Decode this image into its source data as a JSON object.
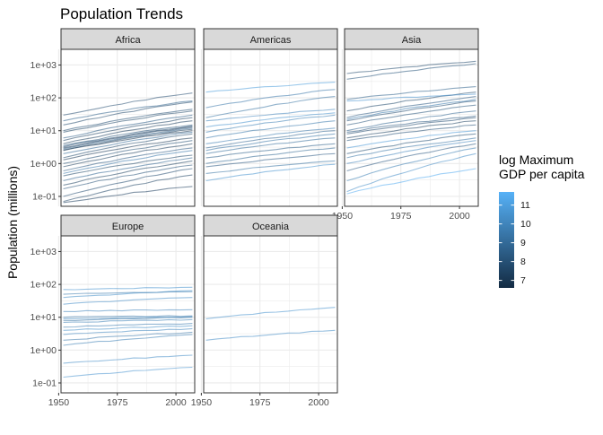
{
  "chart_data": {
    "type": "line",
    "title": "Population Trends",
    "xlabel": "",
    "ylabel": "Population (millions)",
    "x_ticks": [
      1950,
      1975,
      2000
    ],
    "xlim": [
      1951,
      2008
    ],
    "y_scale": "log10",
    "y_ticks": [
      0.1,
      1,
      10,
      100,
      1000
    ],
    "y_tick_labels": [
      "1e-01",
      "1e+00",
      "1e+01",
      "1e+02",
      "1e+03"
    ],
    "ylim": [
      0.05,
      3000
    ],
    "grid": true,
    "legend": {
      "title_lines": [
        "log Maximum",
        "GDP per capita"
      ],
      "position": "right",
      "min": 6.6,
      "max": 11.7,
      "ticks": [
        7,
        8,
        9,
        10,
        11
      ],
      "color_low": "#132B43",
      "color_high": "#56B1F7"
    },
    "panels": [
      {
        "name": "Africa",
        "series": [
          {
            "start": 0.065,
            "end": 0.2,
            "c": 7.3
          },
          {
            "start": 0.07,
            "end": 0.45,
            "c": 7.6
          },
          {
            "start": 0.1,
            "end": 0.7,
            "c": 7.9
          },
          {
            "start": 0.17,
            "end": 0.9,
            "c": 8.1
          },
          {
            "start": 0.22,
            "end": 1.2,
            "c": 7.5
          },
          {
            "start": 0.3,
            "end": 1.5,
            "c": 8.8
          },
          {
            "start": 0.42,
            "end": 1.8,
            "c": 7.7
          },
          {
            "start": 0.5,
            "end": 2.5,
            "c": 9.5
          },
          {
            "start": 0.6,
            "end": 3.0,
            "c": 8.4
          },
          {
            "start": 0.8,
            "end": 4.0,
            "c": 7.4
          },
          {
            "start": 1.0,
            "end": 5.0,
            "c": 8.0
          },
          {
            "start": 1.3,
            "end": 6.0,
            "c": 7.2
          },
          {
            "start": 1.5,
            "end": 8.0,
            "c": 7.8
          },
          {
            "start": 2.0,
            "end": 9.0,
            "c": 9.0
          },
          {
            "start": 2.5,
            "end": 10.0,
            "c": 7.1
          },
          {
            "start": 2.6,
            "end": 11.0,
            "c": 7.5
          },
          {
            "start": 2.8,
            "end": 12.0,
            "c": 8.6
          },
          {
            "start": 3.0,
            "end": 13.0,
            "c": 7.3
          },
          {
            "start": 3.2,
            "end": 14.0,
            "c": 7.9
          },
          {
            "start": 3.5,
            "end": 15.0,
            "c": 8.2
          },
          {
            "start": 4.0,
            "end": 20.0,
            "c": 7.4
          },
          {
            "start": 5.0,
            "end": 25.0,
            "c": 7.6
          },
          {
            "start": 6.0,
            "end": 30.0,
            "c": 8.5
          },
          {
            "start": 9.0,
            "end": 40.0,
            "c": 7.7
          },
          {
            "start": 10.0,
            "end": 45.0,
            "c": 8.0
          },
          {
            "start": 15.0,
            "end": 75.0,
            "c": 7.8
          },
          {
            "start": 20.0,
            "end": 80.0,
            "c": 8.7
          },
          {
            "start": 30.0,
            "end": 140.0,
            "c": 7.9
          }
        ]
      },
      {
        "name": "Americas",
        "series": [
          {
            "start": 0.3,
            "end": 0.95,
            "c": 10.5
          },
          {
            "start": 0.5,
            "end": 1.2,
            "c": 9.3
          },
          {
            "start": 0.8,
            "end": 2.0,
            "c": 8.4
          },
          {
            "start": 1.0,
            "end": 3.0,
            "c": 8.9
          },
          {
            "start": 1.5,
            "end": 4.0,
            "c": 8.6
          },
          {
            "start": 2.0,
            "end": 6.0,
            "c": 9.1
          },
          {
            "start": 2.5,
            "end": 8.0,
            "c": 9.4
          },
          {
            "start": 3.0,
            "end": 10.0,
            "c": 8.8
          },
          {
            "start": 4.0,
            "end": 12.0,
            "c": 9.7
          },
          {
            "start": 6.0,
            "end": 20.0,
            "c": 9.6
          },
          {
            "start": 9.0,
            "end": 30.0,
            "c": 9.8
          },
          {
            "start": 13.0,
            "end": 35.0,
            "c": 10.5
          },
          {
            "start": 20.0,
            "end": 45.0,
            "c": 10.0
          },
          {
            "start": 25.0,
            "end": 110.0,
            "c": 9.3
          },
          {
            "start": 50.0,
            "end": 180.0,
            "c": 9.5
          },
          {
            "start": 150.0,
            "end": 300.0,
            "c": 10.9
          }
        ]
      },
      {
        "name": "Asia",
        "series": [
          {
            "start": 0.12,
            "end": 0.7,
            "c": 11.5
          },
          {
            "start": 0.14,
            "end": 2.0,
            "c": 10.3
          },
          {
            "start": 0.3,
            "end": 3.0,
            "c": 9.8
          },
          {
            "start": 0.6,
            "end": 4.0,
            "c": 8.4
          },
          {
            "start": 1.0,
            "end": 5.0,
            "c": 10.0
          },
          {
            "start": 1.5,
            "end": 6.0,
            "c": 9.4
          },
          {
            "start": 2.0,
            "end": 8.0,
            "c": 8.0
          },
          {
            "start": 3.0,
            "end": 10.0,
            "c": 10.8
          },
          {
            "start": 5.0,
            "end": 15.0,
            "c": 8.1
          },
          {
            "start": 6.0,
            "end": 20.0,
            "c": 7.5
          },
          {
            "start": 8.0,
            "end": 25.0,
            "c": 7.9
          },
          {
            "start": 9.0,
            "end": 28.0,
            "c": 8.3
          },
          {
            "start": 10.0,
            "end": 40.0,
            "c": 8.8
          },
          {
            "start": 15.0,
            "end": 60.0,
            "c": 8.2
          },
          {
            "start": 20.0,
            "end": 80.0,
            "c": 7.9
          },
          {
            "start": 22.0,
            "end": 90.0,
            "c": 9.6
          },
          {
            "start": 25.0,
            "end": 110.0,
            "c": 8.4
          },
          {
            "start": 40.0,
            "end": 150.0,
            "c": 7.8
          },
          {
            "start": 80.0,
            "end": 130.0,
            "c": 10.6
          },
          {
            "start": 90.0,
            "end": 220.0,
            "c": 8.7
          },
          {
            "start": 370.0,
            "end": 1100.0,
            "c": 8.2
          },
          {
            "start": 550.0,
            "end": 1300.0,
            "c": 7.8
          }
        ]
      },
      {
        "name": "Europe",
        "series": [
          {
            "start": 0.15,
            "end": 0.3,
            "c": 10.6
          },
          {
            "start": 0.4,
            "end": 0.7,
            "c": 10.3
          },
          {
            "start": 1.4,
            "end": 3.0,
            "c": 9.8
          },
          {
            "start": 2.0,
            "end": 3.5,
            "c": 9.5
          },
          {
            "start": 3.0,
            "end": 4.5,
            "c": 10.1
          },
          {
            "start": 4.0,
            "end": 5.5,
            "c": 10.4
          },
          {
            "start": 5.0,
            "end": 6.5,
            "c": 9.7
          },
          {
            "start": 7.0,
            "end": 8.5,
            "c": 9.9
          },
          {
            "start": 8.0,
            "end": 10.0,
            "c": 9.3
          },
          {
            "start": 9.0,
            "end": 10.5,
            "c": 10.2
          },
          {
            "start": 10.0,
            "end": 11.0,
            "c": 9.6
          },
          {
            "start": 15.0,
            "end": 17.0,
            "c": 10.0
          },
          {
            "start": 25.0,
            "end": 40.0,
            "c": 10.3
          },
          {
            "start": 40.0,
            "end": 65.0,
            "c": 10.4
          },
          {
            "start": 50.0,
            "end": 60.0,
            "c": 9.6
          },
          {
            "start": 70.0,
            "end": 82.0,
            "c": 10.5
          }
        ]
      },
      {
        "name": "Oceania",
        "series": [
          {
            "start": 2.0,
            "end": 4.0,
            "c": 10.3
          },
          {
            "start": 9.0,
            "end": 20.0,
            "c": 10.5
          }
        ]
      }
    ]
  }
}
